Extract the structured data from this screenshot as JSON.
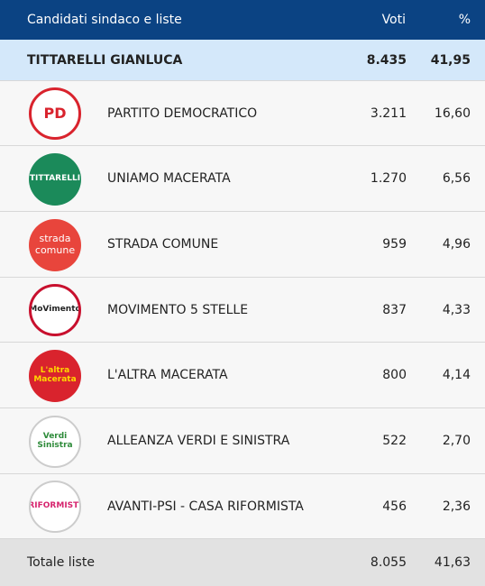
{
  "table": {
    "header": [
      "Candidati sindaco e liste",
      "Voti",
      "%"
    ],
    "candidate": {
      "name": "TITTARELLI GIANLUCA",
      "votes": "8.435",
      "percent": "41,95"
    },
    "rows": [
      {
        "logo": "PD",
        "name": "PARTITO DEMOCRATICO",
        "votes": "3.211",
        "percent": "16,60"
      },
      {
        "logo": "TITTARELLI",
        "name": "UNIAMO MACERATA",
        "votes": "1.270",
        "percent": "6,56"
      },
      {
        "logo": "strada comune",
        "name": "STRADA COMUNE",
        "votes": "959",
        "percent": "4,96"
      },
      {
        "logo": "MoVimento",
        "name": "MOVIMENTO 5 STELLE",
        "votes": "837",
        "percent": "4,33"
      },
      {
        "logo": "L'altra Macerata",
        "name": "L'ALTRA MACERATA",
        "votes": "800",
        "percent": "4,14"
      },
      {
        "logo": "Verdi Sinistra",
        "name": "ALLEANZA VERDI E SINISTRA",
        "votes": "522",
        "percent": "2,70"
      },
      {
        "logo": "RIFORMISTI",
        "name": "AVANTI-PSI - CASA RIFORMISTA",
        "votes": "456",
        "percent": "2,36"
      }
    ],
    "total": {
      "label": "Totale liste",
      "votes": "8.055",
      "percent": "41,63"
    }
  }
}
